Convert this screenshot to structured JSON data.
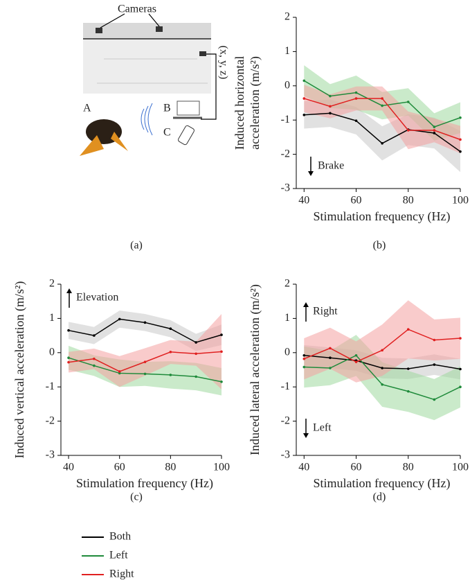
{
  "panel_a": {
    "cameras": "Cameras",
    "coords": "(x, y, z)",
    "label_a": "A",
    "label_b": "B",
    "label_c": "C",
    "caption": "(a)"
  },
  "chart_data": [
    {
      "type": "line",
      "caption": "(b)",
      "xlabel": "Stimulation frequency (Hz)",
      "ylabel": [
        "Induced horizontal",
        "acceleration (m/s²)"
      ],
      "annotations": [
        "Brake"
      ],
      "x": [
        40,
        50,
        60,
        70,
        80,
        90,
        100
      ],
      "xlim": [
        37,
        100
      ],
      "xticks": [
        40,
        60,
        80,
        100
      ],
      "ylim": [
        -3,
        2
      ],
      "yticks": [
        -3,
        -2,
        -1,
        0,
        1,
        2
      ],
      "series": [
        {
          "color": "#000000",
          "band_color": "#c8c8c8",
          "values": [
            -0.85,
            -0.8,
            -1.02,
            -1.68,
            -1.28,
            -1.38,
            -1.92
          ],
          "error": [
            0.4,
            0.4,
            0.4,
            0.5,
            0.45,
            0.45,
            0.6
          ]
        },
        {
          "color": "#1e8a3a",
          "band_color": "#9ed99e",
          "values": [
            0.15,
            -0.3,
            -0.2,
            -0.58,
            -0.47,
            -1.2,
            -0.93
          ],
          "error": [
            0.45,
            0.35,
            0.5,
            0.4,
            0.4,
            0.4,
            0.45
          ]
        },
        {
          "color": "#e02020",
          "band_color": "#f4a0a0",
          "values": [
            -0.37,
            -0.6,
            -0.37,
            -0.37,
            -1.3,
            -1.3,
            -1.57
          ],
          "error": [
            0.4,
            0.35,
            0.35,
            0.35,
            0.55,
            0.35,
            0.4
          ]
        }
      ]
    },
    {
      "type": "line",
      "caption": "(c)",
      "xlabel": "Stimulation frequency (Hz)",
      "ylabel": [
        "Induced vertical acceleration (m/s²)"
      ],
      "annotations": [
        "Elevation"
      ],
      "x": [
        40,
        50,
        60,
        70,
        80,
        90,
        100
      ],
      "xlim": [
        37,
        100
      ],
      "xticks": [
        40,
        60,
        80,
        100
      ],
      "ylim": [
        -3,
        2
      ],
      "yticks": [
        -3,
        -2,
        -1,
        0,
        1,
        2
      ],
      "series": [
        {
          "color": "#000000",
          "band_color": "#c8c8c8",
          "values": [
            0.65,
            0.5,
            0.98,
            0.88,
            0.7,
            0.3,
            0.52
          ],
          "error": [
            0.25,
            0.25,
            0.25,
            0.25,
            0.25,
            0.25,
            0.3
          ]
        },
        {
          "color": "#1e8a3a",
          "band_color": "#9ed99e",
          "values": [
            -0.15,
            -0.38,
            -0.6,
            -0.62,
            -0.65,
            -0.7,
            -0.85
          ],
          "error": [
            0.35,
            0.3,
            0.4,
            0.35,
            0.4,
            0.4,
            0.4
          ]
        },
        {
          "color": "#e02020",
          "band_color": "#f4a0a0",
          "values": [
            -0.28,
            -0.18,
            -0.55,
            -0.27,
            0.02,
            -0.03,
            0.03
          ],
          "error": [
            0.3,
            0.3,
            0.45,
            0.4,
            0.35,
            0.35,
            1.1
          ]
        }
      ]
    },
    {
      "type": "line",
      "caption": "(d)",
      "xlabel": "Stimulation frequency (Hz)",
      "ylabel": [
        "Induced lateral acceleration (m/s²)"
      ],
      "annotations": [
        "Right",
        "Left"
      ],
      "x": [
        40,
        50,
        60,
        70,
        80,
        90,
        100
      ],
      "xlim": [
        37,
        100
      ],
      "xticks": [
        40,
        60,
        80,
        100
      ],
      "ylim": [
        -3,
        2
      ],
      "yticks": [
        -3,
        -2,
        -1,
        0,
        1,
        2
      ],
      "series": [
        {
          "color": "#000000",
          "band_color": "#c8c8c8",
          "values": [
            -0.08,
            -0.15,
            -0.23,
            -0.45,
            -0.47,
            -0.35,
            -0.48
          ],
          "error": [
            0.3,
            0.3,
            0.3,
            0.3,
            0.3,
            0.3,
            0.3
          ]
        },
        {
          "color": "#1e8a3a",
          "band_color": "#9ed99e",
          "values": [
            -0.42,
            -0.45,
            -0.08,
            -0.93,
            -1.13,
            -1.37,
            -1.0
          ],
          "error": [
            0.6,
            0.5,
            0.6,
            0.65,
            0.6,
            0.6,
            0.6
          ]
        },
        {
          "color": "#e02020",
          "band_color": "#f4a0a0",
          "values": [
            -0.18,
            0.13,
            -0.27,
            0.07,
            0.68,
            0.37,
            0.42
          ],
          "error": [
            0.6,
            0.6,
            0.6,
            0.75,
            0.85,
            0.6,
            0.6
          ]
        }
      ]
    }
  ],
  "legend": [
    {
      "name": "Both",
      "color": "#000000"
    },
    {
      "name": "Left",
      "color": "#1e8a3a"
    },
    {
      "name": "Right",
      "color": "#e02020"
    }
  ]
}
